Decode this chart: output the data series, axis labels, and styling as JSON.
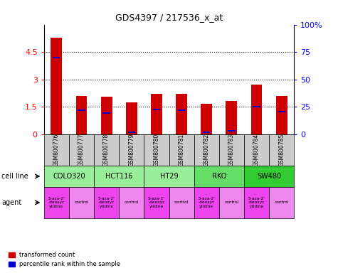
{
  "title": "GDS4397 / 217536_x_at",
  "samples": [
    "GSM800776",
    "GSM800777",
    "GSM800778",
    "GSM800779",
    "GSM800780",
    "GSM800781",
    "GSM800782",
    "GSM800783",
    "GSM800784",
    "GSM800785"
  ],
  "red_values": [
    5.3,
    2.1,
    2.05,
    1.75,
    2.2,
    2.2,
    1.65,
    1.8,
    2.7,
    2.1
  ],
  "blue_values": [
    4.2,
    1.3,
    1.15,
    0.12,
    1.35,
    1.3,
    0.12,
    0.18,
    1.5,
    1.25
  ],
  "ylim": [
    0,
    6
  ],
  "yticks": [
    0,
    1.5,
    3.0,
    4.5
  ],
  "ytick_labels": [
    "0",
    "1.5",
    "3",
    "4.5"
  ],
  "right_yticks": [
    0,
    25,
    50,
    75,
    100
  ],
  "right_ytick_labels": [
    "0",
    "25",
    "50",
    "75",
    "100%"
  ],
  "gridlines": [
    1.5,
    3.0,
    4.5
  ],
  "bar_width": 0.45,
  "red_color": "#cc0000",
  "blue_color": "#0000cc",
  "cell_lines": [
    {
      "name": "COLO320",
      "start": 0,
      "end": 2,
      "color": "#99ee99"
    },
    {
      "name": "HCT116",
      "start": 2,
      "end": 4,
      "color": "#99ee99"
    },
    {
      "name": "HT29",
      "start": 4,
      "end": 6,
      "color": "#99ee99"
    },
    {
      "name": "RKO",
      "start": 6,
      "end": 8,
      "color": "#66dd66"
    },
    {
      "name": "SW480",
      "start": 8,
      "end": 10,
      "color": "#33cc33"
    }
  ],
  "agent_drug_color": "#ee44ee",
  "agent_ctrl_color": "#ee88ee",
  "agent_drug_text": "5-aza-2'\n-deoxyc\nytidine",
  "agent_ctrl_text": "control",
  "sample_bg": "#cccccc",
  "legend_red": "transformed count",
  "legend_blue": "percentile rank within the sample",
  "label_cell_line": "cell line",
  "label_agent": "agent"
}
